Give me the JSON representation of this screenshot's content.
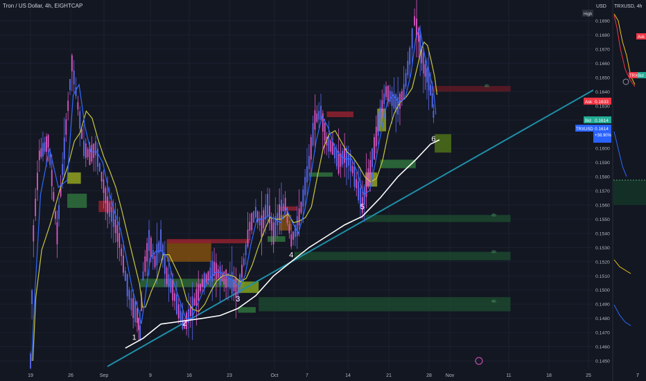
{
  "header": {
    "symbol_title": "Tron / US Dollar, 4h, EIGHTCAP"
  },
  "price_axis": {
    "currency_label": "USD",
    "high_tag": "High",
    "ask_tag": "Ask",
    "ask_value": "0.1633",
    "bid_tag": "Bid",
    "bid_value": "0.1614",
    "ticker_tag": "TRXUSD",
    "ticker_value": "0.1614",
    "ticker_change": "+38.90%",
    "ticks": [
      "0.1690",
      "0.1680",
      "0.1670",
      "0.1660",
      "0.1650",
      "0.1640",
      "0.1630",
      "0.1620",
      "0.1610",
      "0.1600",
      "0.1590",
      "0.1580",
      "0.1570",
      "0.1560",
      "0.1550",
      "0.1540",
      "0.1530",
      "0.1520",
      "0.1510",
      "0.1500",
      "0.1490",
      "0.1480",
      "0.1470",
      "0.1460",
      "0.1450"
    ]
  },
  "time_axis": {
    "labels": [
      "19",
      "26",
      "Sep",
      "9",
      "16",
      "23",
      "Oct",
      "7",
      "14",
      "21",
      "28",
      "Nov",
      "11",
      "18",
      "25"
    ]
  },
  "right_panel": {
    "title": "TRXUSD, 4h",
    "tags": [
      "Ask",
      "TRX",
      "Bid"
    ],
    "tick_label": "7"
  },
  "annotations": {
    "wave_labels": [
      "1",
      "2",
      "3",
      "4",
      "5",
      "6"
    ],
    "zone_timeframe_label": "4h"
  },
  "colors": {
    "background": "#131722",
    "candle_up": "#5b6bf5",
    "candle_down": "#e056c8",
    "ma_fast": "#2f6bff",
    "ma_slow": "#c8c840",
    "trendline": "#1f8fa8",
    "curve": "#ffffff",
    "demand_zone": "#2e6b3a",
    "supply_zone": "#8b2030",
    "ask": "#f23645",
    "bid": "#22ab94",
    "ticker": "#2962ff"
  },
  "chart_data": {
    "type": "line",
    "title": "Tron / US Dollar, 4h, EIGHTCAP",
    "xlabel": "",
    "ylabel": "",
    "ylim": [
      0.1445,
      0.1697
    ],
    "x_ticks": [
      "19",
      "26",
      "Sep",
      "9",
      "16",
      "23",
      "Oct",
      "7",
      "14",
      "21",
      "28",
      "Nov",
      "11",
      "18",
      "25"
    ],
    "series": [
      {
        "values": [
          {
            "x": 19.0,
            "y": 0.145
          },
          {
            "x": 19.5,
            "y": 0.154
          },
          {
            "x": 20.5,
            "y": 0.1595
          },
          {
            "x": 22.0,
            "y": 0.1605
          },
          {
            "x": 23.5,
            "y": 0.154
          },
          {
            "x": 25.0,
            "y": 0.1615
          },
          {
            "x": 26.0,
            "y": 0.166
          },
          {
            "x": 27.0,
            "y": 0.163
          },
          {
            "x": 28.0,
            "y": 0.16
          },
          {
            "x": 29.0,
            "y": 0.1595
          },
          {
            "x": 30.0,
            "y": 0.16
          },
          {
            "x": 31.0,
            "y": 0.158
          },
          {
            "x": 32.0,
            "y": 0.156
          },
          {
            "x": 33.0,
            "y": 0.155
          },
          {
            "x": 34.0,
            "y": 0.1535
          },
          {
            "x": 35.0,
            "y": 0.151
          },
          {
            "x": 36.0,
            "y": 0.149
          },
          {
            "x": 37.0,
            "y": 0.1482
          },
          {
            "x": 37.5,
            "y": 0.147
          },
          {
            "x": 38.0,
            "y": 0.151
          },
          {
            "x": 39.0,
            "y": 0.1535
          },
          {
            "x": 40.0,
            "y": 0.152
          },
          {
            "x": 41.0,
            "y": 0.1535
          },
          {
            "x": 42.0,
            "y": 0.151
          },
          {
            "x": 43.0,
            "y": 0.15
          },
          {
            "x": 44.0,
            "y": 0.1485
          },
          {
            "x": 45.0,
            "y": 0.1475
          },
          {
            "x": 46.0,
            "y": 0.1485
          },
          {
            "x": 47.0,
            "y": 0.1495
          },
          {
            "x": 48.0,
            "y": 0.1505
          },
          {
            "x": 49.0,
            "y": 0.151
          },
          {
            "x": 50.0,
            "y": 0.1515
          },
          {
            "x": 51.0,
            "y": 0.151
          },
          {
            "x": 52.0,
            "y": 0.1508
          },
          {
            "x": 53.0,
            "y": 0.1505
          },
          {
            "x": 54.0,
            "y": 0.15
          },
          {
            "x": 55.0,
            "y": 0.152
          },
          {
            "x": 56.0,
            "y": 0.1545
          },
          {
            "x": 57.0,
            "y": 0.1555
          },
          {
            "x": 58.0,
            "y": 0.1545
          },
          {
            "x": 59.0,
            "y": 0.156
          },
          {
            "x": 60.0,
            "y": 0.154
          },
          {
            "x": 61.0,
            "y": 0.1555
          },
          {
            "x": 62.0,
            "y": 0.156
          },
          {
            "x": 63.0,
            "y": 0.1535
          },
          {
            "x": 64.0,
            "y": 0.1545
          },
          {
            "x": 65.0,
            "y": 0.1565
          },
          {
            "x": 66.0,
            "y": 0.159
          },
          {
            "x": 67.0,
            "y": 0.162
          },
          {
            "x": 68.0,
            "y": 0.1625
          },
          {
            "x": 69.0,
            "y": 0.1605
          },
          {
            "x": 70.0,
            "y": 0.16
          },
          {
            "x": 71.0,
            "y": 0.159
          },
          {
            "x": 72.0,
            "y": 0.1595
          },
          {
            "x": 73.0,
            "y": 0.159
          },
          {
            "x": 74.0,
            "y": 0.1575
          },
          {
            "x": 75.0,
            "y": 0.156
          },
          {
            "x": 76.0,
            "y": 0.158
          },
          {
            "x": 77.0,
            "y": 0.16
          },
          {
            "x": 78.0,
            "y": 0.1625
          },
          {
            "x": 79.0,
            "y": 0.164
          },
          {
            "x": 80.0,
            "y": 0.1635
          },
          {
            "x": 81.0,
            "y": 0.163
          },
          {
            "x": 82.0,
            "y": 0.164
          },
          {
            "x": 83.0,
            "y": 0.1665
          },
          {
            "x": 83.8,
            "y": 0.169
          },
          {
            "x": 84.5,
            "y": 0.168
          },
          {
            "x": 85.0,
            "y": 0.1665
          },
          {
            "x": 85.6,
            "y": 0.1655
          },
          {
            "x": 86.2,
            "y": 0.1648
          },
          {
            "x": 86.8,
            "y": 0.1634
          },
          {
            "x": 87.2,
            "y": 0.1614
          }
        ]
      }
    ],
    "wave_points": [
      {
        "label": "1",
        "x": 36.5,
        "y": 0.1465
      },
      {
        "label": "2",
        "x": 45.0,
        "y": 0.1475
      },
      {
        "label": "3",
        "x": 54.0,
        "y": 0.1492
      },
      {
        "label": "4",
        "x": 63.0,
        "y": 0.1523
      },
      {
        "label": "5",
        "x": 75.0,
        "y": 0.1557
      },
      {
        "label": "6",
        "x": 87.0,
        "y": 0.1605
      }
    ]
  }
}
